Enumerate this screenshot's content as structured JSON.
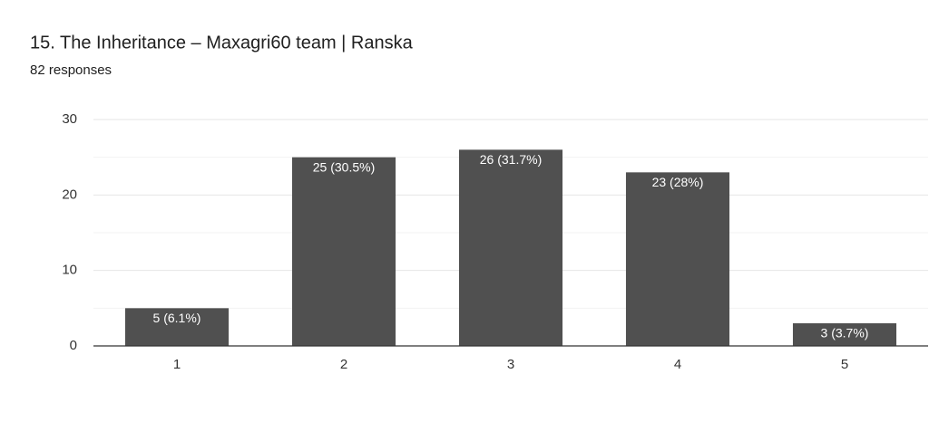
{
  "chart_data": {
    "type": "bar",
    "title": "15. The Inheritance – Maxagri60 team | Ranska",
    "subtitle": "82 responses",
    "categories": [
      "1",
      "2",
      "3",
      "4",
      "5"
    ],
    "values": [
      5,
      25,
      26,
      23,
      3
    ],
    "value_labels": [
      "5 (6.1%)",
      "25 (30.5%)",
      "26 (31.7%)",
      "23 (28%)",
      "3 (3.7%)"
    ],
    "color": "#505050",
    "ylim": [
      0,
      30
    ],
    "yticks": [
      0,
      10,
      20,
      30
    ],
    "yminorticks": [
      5,
      15,
      25
    ],
    "grid": true
  }
}
